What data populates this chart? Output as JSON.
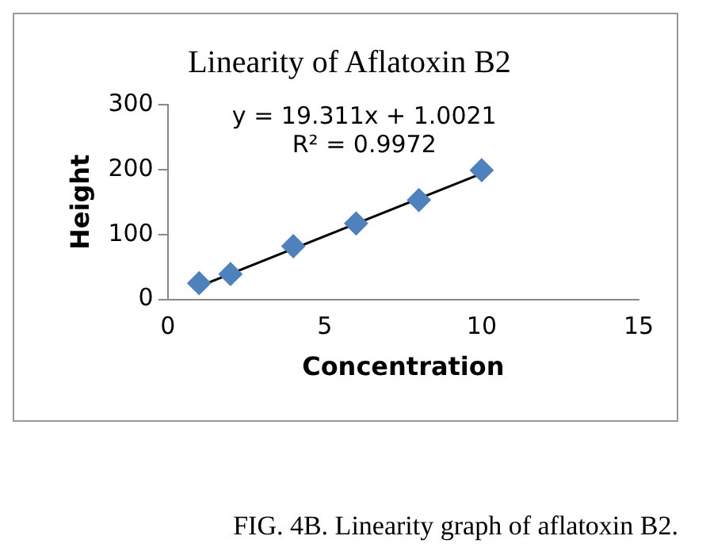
{
  "chart_data": {
    "type": "scatter",
    "title": "Linearity of Aflatoxin B2",
    "xlabel": "Concentration",
    "ylabel": "Height",
    "series": [
      {
        "type": "scatter",
        "color": "#4f81bd",
        "marker": "diamond",
        "x": [
          1,
          2,
          4,
          6,
          8,
          10
        ],
        "values": [
          25,
          39,
          82,
          117,
          153,
          199
        ]
      },
      {
        "type": "line",
        "color": "#000000",
        "marker": "none",
        "line_style": "solid",
        "x": [
          1,
          10
        ],
        "values": [
          20,
          194
        ]
      }
    ],
    "annotations": [
      "y = 19.311x + 1.0021",
      "R² = 0.9972",
      "FIG. 4B. Linearity graph of aflatoxin B2."
    ],
    "xlim": [
      0,
      15
    ],
    "xticks": [
      0,
      5,
      10,
      15
    ],
    "ylim": [
      0,
      300
    ],
    "yticks": [
      0,
      100,
      200,
      300
    ],
    "grid": false,
    "legend": false
  }
}
